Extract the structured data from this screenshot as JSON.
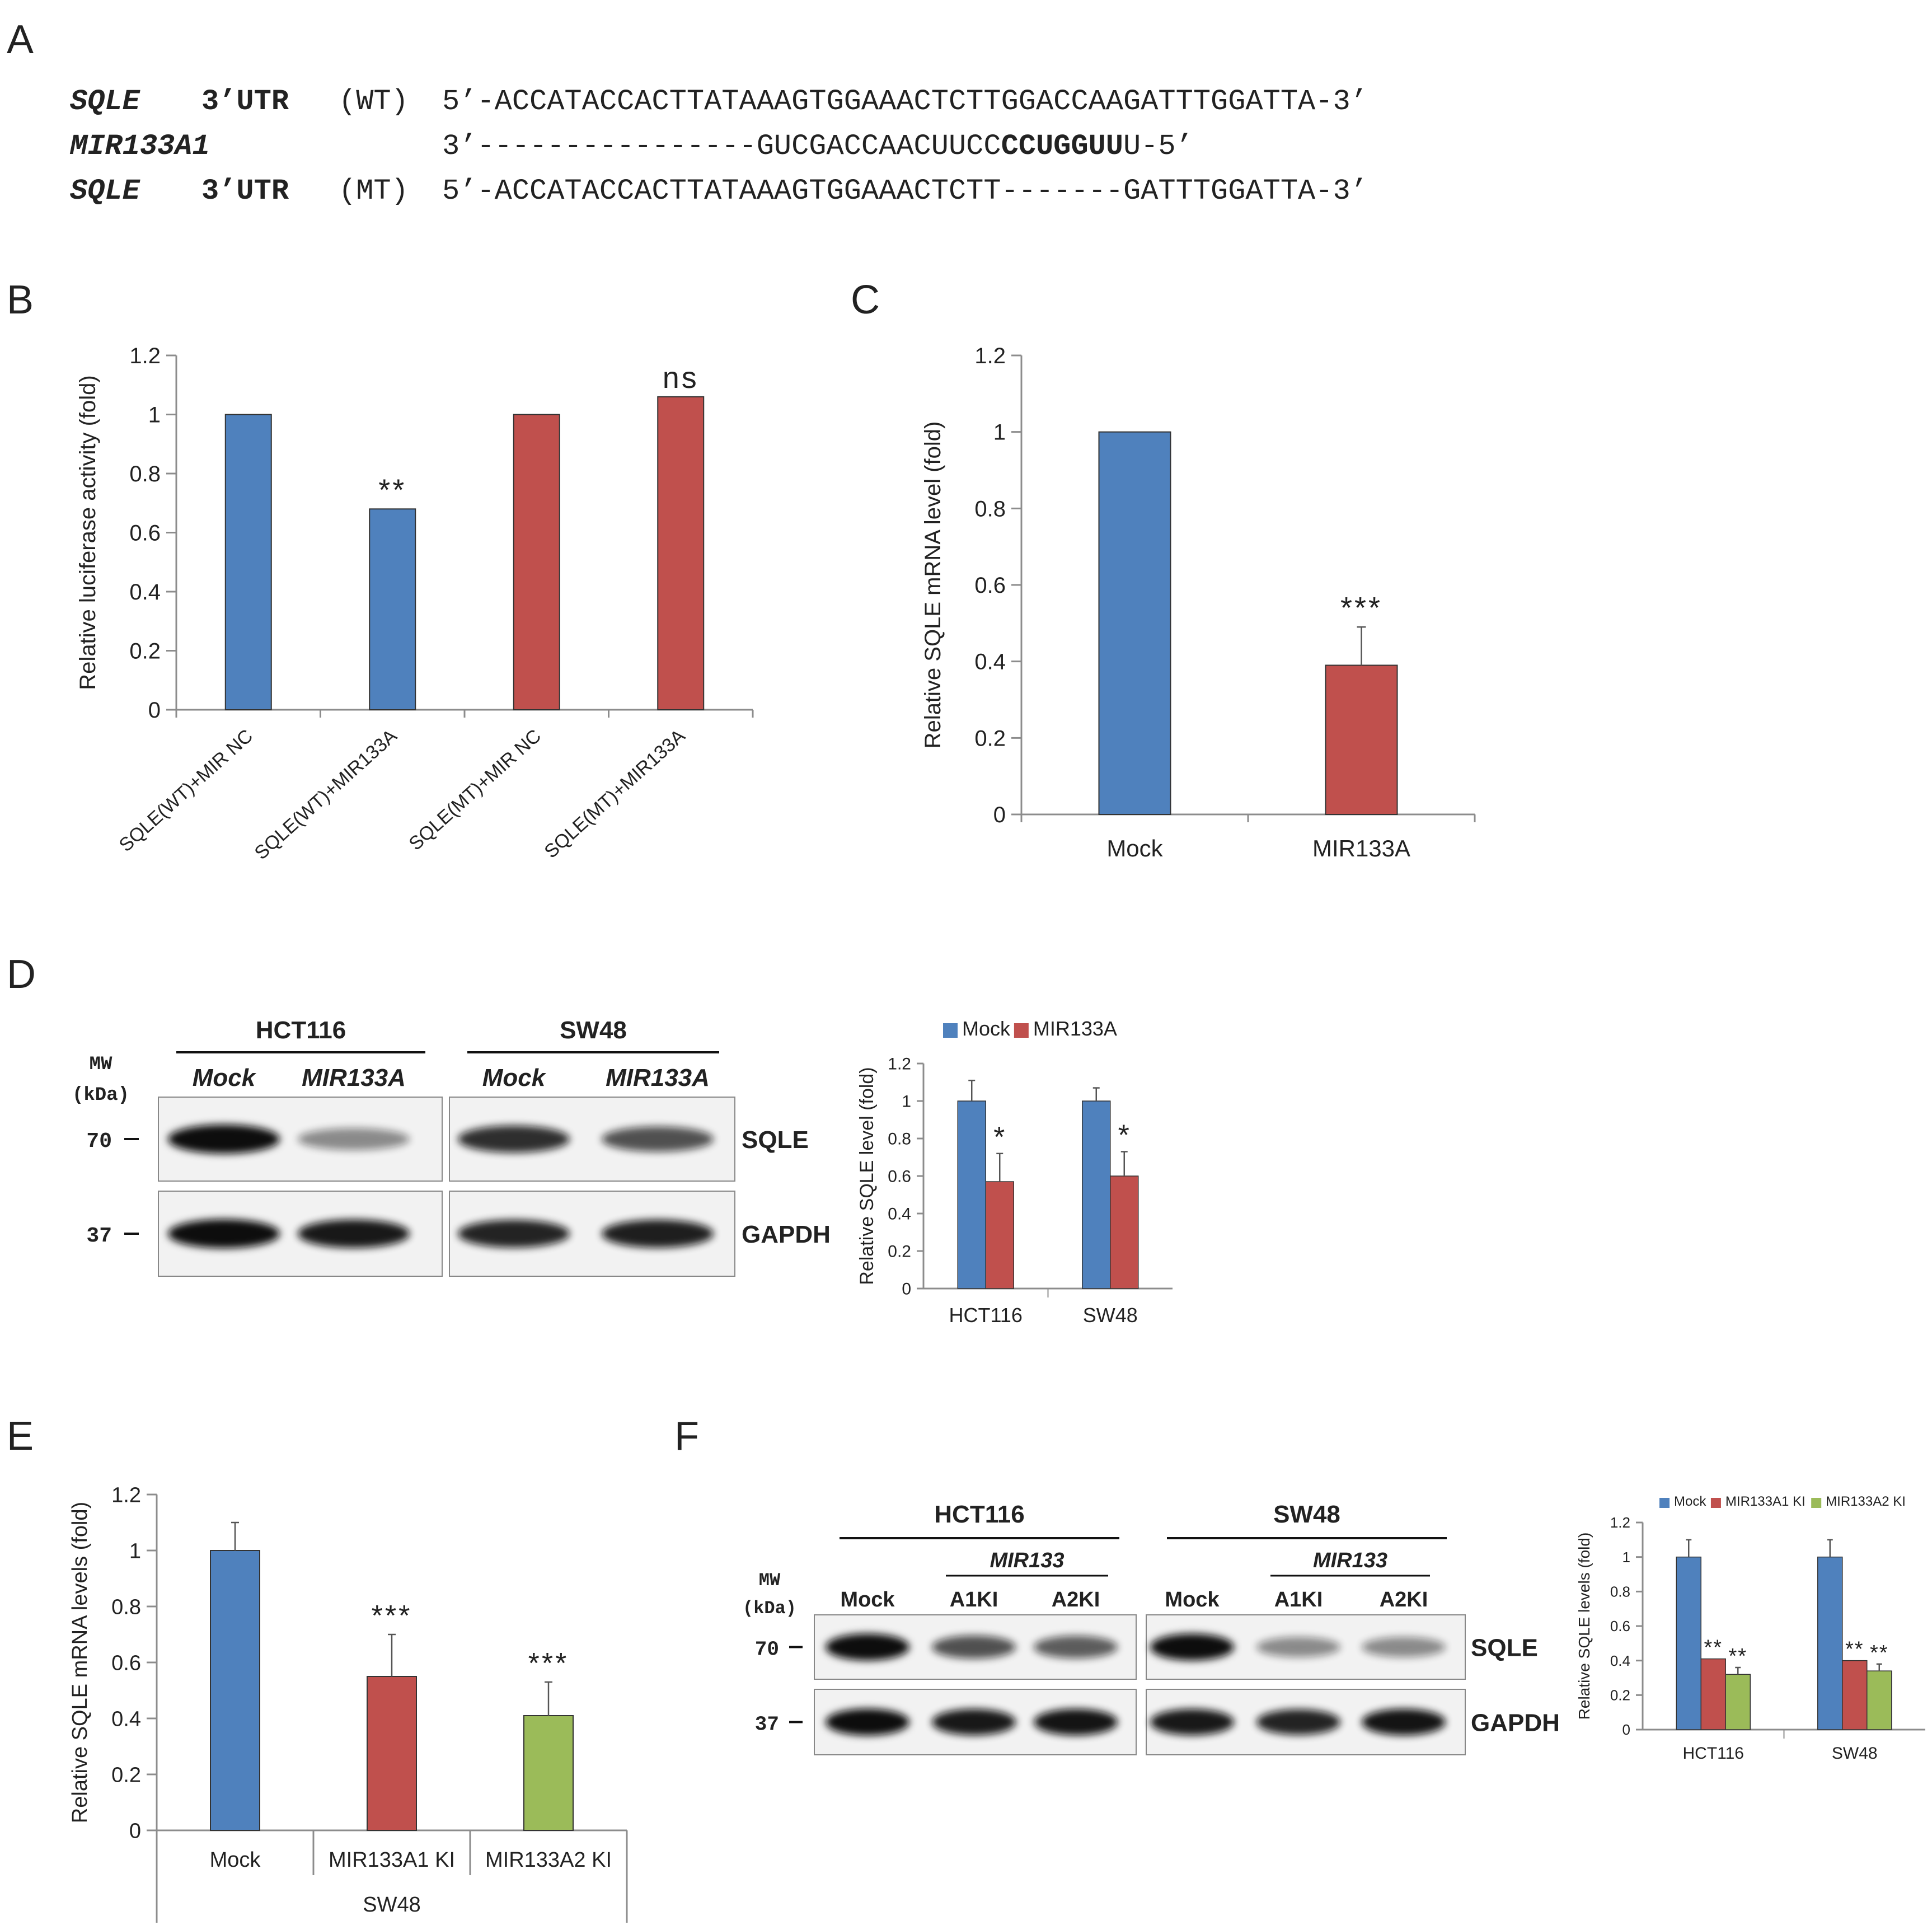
{
  "figure": {
    "panel_letters": [
      "A",
      "B",
      "C",
      "D",
      "E",
      "F"
    ]
  },
  "panelA": {
    "rows": [
      {
        "name": "SQLE",
        "region": "3’UTR",
        "tag": "(WT)",
        "seq_pre": "5’-ACCATACCACTTATAAAGTGGAAACTCTTGGACCAAGATTTGGATTA-3’",
        "seq_bold": "",
        "seq_post": ""
      },
      {
        "name": "MIR133A1",
        "region": "",
        "tag": "",
        "seq_pre": "3’----------------GUCGACCAACUUCC",
        "seq_bold": "CCUGGUU",
        "seq_post": "U-5’"
      },
      {
        "name": "SQLE",
        "region": "3’UTR",
        "tag": "(MT)",
        "seq_pre": "5’-ACCATACCACTTATAAAGTGGAAACTCTT-------GATTTGGATTA-3’",
        "seq_bold": "",
        "seq_post": ""
      }
    ]
  },
  "chart_data": [
    {
      "panel": "B",
      "type": "bar",
      "categories": [
        "SQLE(WT)+MIR NC",
        "SQLE(WT)+MIR133A",
        "SQLE(MT)+MIR NC",
        "SQLE(MT)+MIR133A"
      ],
      "values": [
        1.0,
        0.68,
        1.0,
        1.06
      ],
      "errors": [
        0.0,
        0.0,
        0.0,
        0.0
      ],
      "colors": [
        "#4f81bd",
        "#4f81bd",
        "#c0504d",
        "#c0504d"
      ],
      "annotations": [
        "",
        "**",
        "",
        "ns"
      ],
      "ylabel": "Relative luciferase activity (fold)",
      "ylim": [
        0,
        1.2
      ],
      "yticks": [
        "0",
        "0.2",
        "0.4",
        "0.6",
        "0.8",
        "1",
        "1.2"
      ]
    },
    {
      "panel": "C",
      "type": "bar",
      "categories": [
        "Mock",
        "MIR133A"
      ],
      "values": [
        1.0,
        0.39
      ],
      "errors": [
        0.0,
        0.1
      ],
      "colors": [
        "#4f81bd",
        "#c0504d"
      ],
      "annotations": [
        "",
        "***"
      ],
      "ylabel": "Relative SQLE mRNA level (fold)",
      "ylim": [
        0,
        1.2
      ],
      "yticks": [
        "0",
        "0.2",
        "0.4",
        "0.6",
        "0.8",
        "1",
        "1.2"
      ]
    },
    {
      "panel": "D",
      "type": "bar",
      "categories": [
        "HCT116",
        "SW48"
      ],
      "series": [
        {
          "name": "Mock",
          "color": "#4f81bd",
          "values": [
            1.0,
            1.0
          ],
          "errors": [
            0.11,
            0.07
          ],
          "annotations": [
            "",
            ""
          ]
        },
        {
          "name": "MIR133A",
          "color": "#c0504d",
          "values": [
            0.57,
            0.6
          ],
          "errors": [
            0.15,
            0.13
          ],
          "annotations": [
            "*",
            "*"
          ]
        }
      ],
      "ylabel": "Relative SQLE level (fold)",
      "ylim": [
        0,
        1.2
      ],
      "yticks": [
        "0",
        "0.2",
        "0.4",
        "0.6",
        "0.8",
        "1",
        "1.2"
      ],
      "legend": "top"
    },
    {
      "panel": "E",
      "type": "bar",
      "categories": [
        "Mock",
        "MIR133A1 KI",
        "MIR133A2 KI"
      ],
      "group_label": "SW48",
      "values": [
        1.0,
        0.55,
        0.41
      ],
      "errors": [
        0.1,
        0.15,
        0.12
      ],
      "colors": [
        "#4f81bd",
        "#c0504d",
        "#9bbb59"
      ],
      "annotations": [
        "",
        "***",
        "***"
      ],
      "ylabel": "Relative SQLE mRNA levels (fold)",
      "ylim": [
        0,
        1.2
      ],
      "yticks": [
        "0",
        "0.2",
        "0.4",
        "0.6",
        "0.8",
        "1",
        "1.2"
      ]
    },
    {
      "panel": "F",
      "type": "bar",
      "categories": [
        "HCT116",
        "SW48"
      ],
      "series": [
        {
          "name": "Mock",
          "color": "#4f81bd",
          "values": [
            1.0,
            1.0
          ],
          "errors": [
            0.1,
            0.1
          ],
          "annotations": [
            "",
            ""
          ]
        },
        {
          "name": "MIR133A1 KI",
          "color": "#c0504d",
          "values": [
            0.41,
            0.4
          ],
          "errors": [
            0.0,
            0.0
          ],
          "annotations": [
            "**",
            "**"
          ]
        },
        {
          "name": "MIR133A2 KI",
          "color": "#9bbb59",
          "values": [
            0.32,
            0.34
          ],
          "errors": [
            0.04,
            0.04
          ],
          "annotations": [
            "**",
            "**"
          ]
        }
      ],
      "ylabel": "Relative SQLE levels (fold)",
      "ylim": [
        0,
        1.2
      ],
      "yticks": [
        "0",
        "0.2",
        "0.4",
        "0.6",
        "0.8",
        "1",
        "1.2"
      ],
      "legend": "top"
    }
  ],
  "blotD": {
    "mw_header": [
      "MW",
      "(kDa)"
    ],
    "groups": [
      "HCT116",
      "SW48"
    ],
    "lanes": [
      "Mock",
      "MIR133A",
      "Mock",
      "MIR133A"
    ],
    "rows": [
      {
        "mw": "70",
        "label": "SQLE",
        "intensity": [
          1.0,
          0.45,
          0.85,
          0.7
        ]
      },
      {
        "mw": "37",
        "label": "GAPDH",
        "intensity": [
          1.0,
          0.95,
          0.9,
          0.92
        ]
      }
    ]
  },
  "blotF": {
    "mw_header": [
      "MW",
      "(kDa)"
    ],
    "groups": [
      "HCT116",
      "SW48"
    ],
    "sublabel": "MIR133",
    "lanes": [
      "Mock",
      "A1KI",
      "A2KI",
      "Mock",
      "A1KI",
      "A2KI"
    ],
    "rows": [
      {
        "mw": "70",
        "label": "SQLE",
        "intensity": [
          1.0,
          0.7,
          0.65,
          1.0,
          0.45,
          0.45
        ]
      },
      {
        "mw": "37",
        "label": "GAPDH",
        "intensity": [
          1.0,
          0.95,
          0.97,
          0.95,
          0.9,
          0.97
        ]
      }
    ]
  }
}
